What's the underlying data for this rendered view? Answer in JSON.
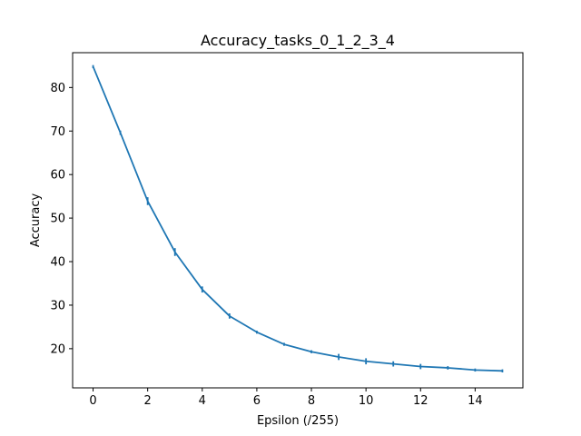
{
  "chart_data": {
    "type": "line",
    "title": "Accuracy_tasks_0_1_2_3_4",
    "xlabel": "Epsilon (/255)",
    "ylabel": "Accuracy",
    "xlim": [
      -0.75,
      15.75
    ],
    "ylim": [
      11.0,
      88.0
    ],
    "xticks": [
      0,
      2,
      4,
      6,
      8,
      10,
      12,
      14
    ],
    "yticks": [
      20,
      30,
      40,
      50,
      60,
      70,
      80
    ],
    "grid": false,
    "series": [
      {
        "color": "#1f77b4",
        "x": [
          0,
          1,
          2,
          3,
          4,
          5,
          6,
          7,
          8,
          9,
          10,
          11,
          12,
          13,
          14,
          15
        ],
        "y": [
          84.8,
          69.6,
          53.9,
          42.2,
          33.6,
          27.5,
          23.8,
          21.0,
          19.3,
          18.1,
          17.1,
          16.5,
          15.9,
          15.6,
          15.1,
          14.9
        ],
        "yerr": [
          0.2,
          0.5,
          0.9,
          0.9,
          0.7,
          0.6,
          0.3,
          0.3,
          0.3,
          0.7,
          0.7,
          0.6,
          0.6,
          0.4,
          0.3,
          0.3
        ]
      }
    ]
  }
}
